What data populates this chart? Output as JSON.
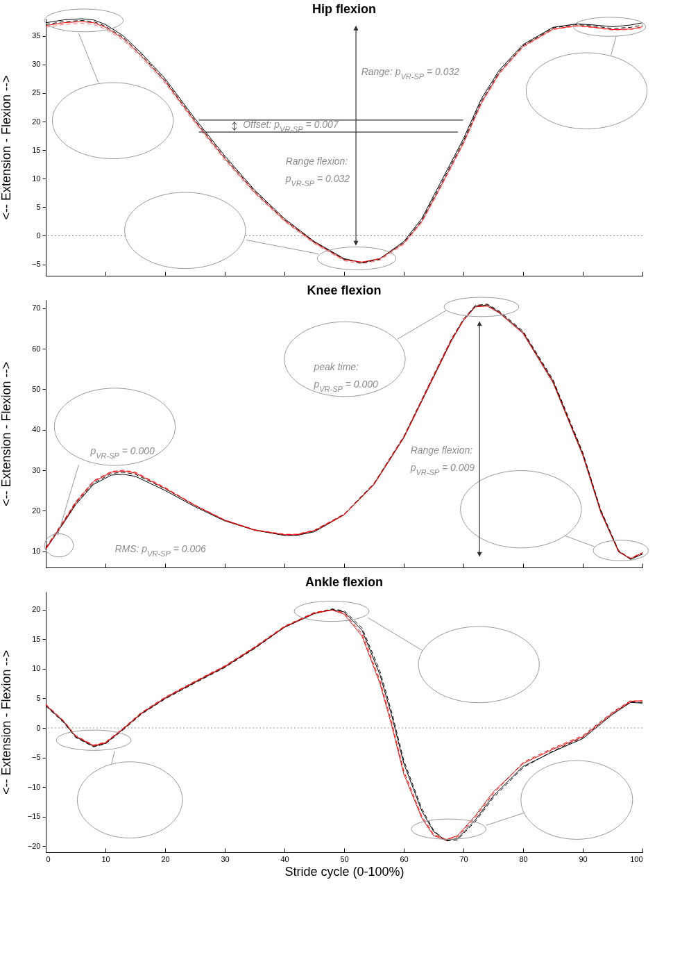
{
  "chart_data": [
    {
      "type": "line",
      "title": "Hip flexion",
      "ylabel": "<-- Extension - Flexion -->",
      "xlim": [
        0,
        100
      ],
      "xticks": [
        0,
        10,
        20,
        30,
        40,
        50,
        60,
        70,
        80,
        90,
        100
      ],
      "ylim": [
        -7,
        38
      ],
      "yticks": [
        -5,
        0,
        5,
        10,
        15,
        20,
        25,
        30,
        35
      ],
      "tick_labels": "y",
      "x": [
        0,
        3,
        6,
        8,
        10,
        13,
        16,
        20,
        25,
        30,
        35,
        40,
        45,
        50,
        53,
        56,
        60,
        63,
        66,
        70,
        73,
        76,
        80,
        85,
        89,
        92,
        95,
        98,
        100
      ],
      "series": [
        {
          "color": "#000000",
          "line_style": "solid",
          "values": [
            37.3,
            37.8,
            38,
            37.8,
            37,
            35,
            32,
            27.5,
            20.5,
            14,
            8,
            3,
            -1,
            -4,
            -4.7,
            -4,
            -1,
            3,
            9,
            17,
            24,
            29,
            33.5,
            36.5,
            37.1,
            36.9,
            36.6,
            36.9,
            37.3
          ]
        },
        {
          "color": "#000000",
          "line_style": "dashed",
          "values": [
            37,
            37.5,
            37.7,
            37.5,
            36.7,
            34.7,
            31.7,
            27.2,
            20.2,
            13.7,
            7.8,
            2.8,
            -1.1,
            -4.1,
            -4.8,
            -4.1,
            -1.2,
            2.7,
            8.6,
            16.6,
            23.6,
            28.7,
            33.3,
            36.4,
            37,
            36.7,
            36.3,
            36.5,
            36.9
          ]
        },
        {
          "color": "#ff0000",
          "line_style": "solid",
          "values": [
            36.8,
            37.3,
            37.5,
            37.3,
            36.5,
            34.5,
            31.5,
            27,
            20,
            13.5,
            7.6,
            2.7,
            -1.2,
            -4.2,
            -4.6,
            -4,
            -1.3,
            2.5,
            8.3,
            16.3,
            23.3,
            28.5,
            33.2,
            36.2,
            36.8,
            36.5,
            36.1,
            36.2,
            36.6
          ]
        },
        {
          "color": "#ff7070",
          "line_style": "dashed",
          "values": [
            36.5,
            37,
            37.2,
            37,
            36.2,
            34.2,
            31.2,
            26.7,
            19.7,
            13.2,
            7.4,
            2.5,
            -1.4,
            -4.4,
            -4.9,
            -4.3,
            -1.5,
            2.3,
            8.1,
            16.1,
            23.1,
            28.3,
            33,
            36.1,
            36.7,
            36.4,
            36,
            36.1,
            36.4
          ]
        }
      ],
      "ref_lines": [
        {
          "axis": "y",
          "value": 0,
          "color": "#999999",
          "line_style": "dotted"
        }
      ],
      "annotations": [
        "Range: p$_{VR-SP}$ = 0.032",
        "Offset: p$_{VR-SP}$ = 0.007",
        "Range flexion:\np$_{VR-SP}$ = 0.032"
      ]
    },
    {
      "type": "line",
      "title": "Knee flexion",
      "ylabel": "<-- Extension - Flexion -->",
      "xlim": [
        0,
        100
      ],
      "xticks": [
        0,
        10,
        20,
        30,
        40,
        50,
        60,
        70,
        80,
        90,
        100
      ],
      "ylim": [
        6,
        72
      ],
      "yticks": [
        10,
        20,
        30,
        40,
        50,
        60,
        70
      ],
      "tick_labels": "y",
      "x": [
        0,
        3,
        5,
        8,
        11,
        13,
        15,
        20,
        25,
        30,
        35,
        40,
        42,
        45,
        50,
        55,
        60,
        65,
        68,
        70,
        72,
        74,
        76,
        80,
        85,
        90,
        93,
        96,
        98,
        100
      ],
      "series": [
        {
          "color": "#000000",
          "line_style": "solid",
          "values": [
            10.5,
            17,
            21.5,
            26.5,
            28.8,
            29,
            28.5,
            25,
            21,
            17.5,
            15.2,
            13.9,
            13.9,
            14.8,
            19,
            26.5,
            38,
            53,
            62,
            67,
            70.5,
            70.8,
            69,
            64,
            52,
            34,
            20,
            10,
            8,
            9.3
          ]
        },
        {
          "color": "#000000",
          "line_style": "dashed",
          "values": [
            10.7,
            17.2,
            21.8,
            26.8,
            29.2,
            29.5,
            29,
            25.4,
            21.3,
            17.7,
            15.3,
            14,
            14,
            15,
            19.1,
            26.7,
            38.3,
            53.4,
            62.4,
            67.3,
            70.7,
            71,
            69.3,
            64.3,
            52.4,
            34.4,
            20.3,
            10.2,
            8.1,
            9.4
          ]
        },
        {
          "color": "#ff0000",
          "line_style": "solid",
          "values": [
            10.6,
            17.3,
            22,
            27.2,
            29.5,
            29.8,
            29.3,
            25.5,
            21.3,
            17.6,
            15.2,
            14.1,
            14.1,
            15.1,
            19,
            26.5,
            38.1,
            53.2,
            62.2,
            67,
            70.3,
            70.5,
            68.8,
            63.7,
            51.6,
            33.6,
            19.6,
            9.8,
            8.2,
            9.6
          ]
        },
        {
          "color": "#ff0000",
          "line_style": "dashed",
          "values": [
            10.9,
            17.6,
            22.2,
            27.4,
            29.7,
            30,
            29.5,
            25.7,
            21.4,
            17.7,
            15.3,
            14.2,
            14.2,
            15.2,
            19.2,
            26.8,
            38.4,
            53.5,
            62.5,
            67.3,
            70.6,
            70.8,
            69,
            64,
            51.9,
            33.9,
            19.8,
            9.9,
            8.3,
            9.7
          ]
        }
      ],
      "annotations": [
        "peak time:\np$_{VR-SP}$ = 0.000",
        "p$_{VR-SP}$ = 0.000",
        "Range flexion:\np$_{VR-SP}$ = 0.009",
        "RMS: p$_{VR-SP}$ = 0.006"
      ]
    },
    {
      "type": "line",
      "title": "Ankle flexion",
      "xlabel": "Stride cycle (0-100%)",
      "ylabel": "<-- Extension - Flexion -->",
      "xlim": [
        0,
        100
      ],
      "xticks": [
        0,
        10,
        20,
        30,
        40,
        50,
        60,
        70,
        80,
        90,
        100
      ],
      "ylim": [
        -21,
        23
      ],
      "yticks": [
        -20,
        -15,
        -10,
        -5,
        0,
        5,
        10,
        15,
        20
      ],
      "x": [
        0,
        3,
        5,
        8,
        10,
        13,
        16,
        20,
        25,
        30,
        35,
        40,
        45,
        48,
        50,
        53,
        56,
        58,
        60,
        63,
        65,
        67,
        69,
        72,
        75,
        80,
        85,
        90,
        95,
        98,
        100
      ],
      "series": [
        {
          "color": "#000000",
          "line_style": "solid",
          "values": [
            3.8,
            1,
            -1.5,
            -3.1,
            -2.6,
            -0.2,
            2.4,
            5,
            7.7,
            10.3,
            13.5,
            17,
            19.3,
            20,
            19.6,
            16.5,
            9,
            2,
            -6,
            -14,
            -17.5,
            -19,
            -18.7,
            -15.5,
            -11.5,
            -6.5,
            -4,
            -1.8,
            2.3,
            4.3,
            4.2
          ]
        },
        {
          "color": "#000000",
          "line_style": "dashed",
          "values": [
            3.7,
            0.9,
            -1.6,
            -3.2,
            -2.7,
            -0.3,
            2.3,
            4.9,
            7.6,
            10.2,
            13.4,
            17,
            19.4,
            20.1,
            19.8,
            16.9,
            9.6,
            2.6,
            -5.5,
            -13.6,
            -17.3,
            -19.1,
            -18.9,
            -15.8,
            -11.8,
            -6.7,
            -3.9,
            -1.6,
            2.5,
            4.4,
            4.3
          ]
        },
        {
          "color": "#ff0000",
          "line_style": "solid",
          "values": [
            3.9,
            1.1,
            -1.4,
            -3,
            -2.5,
            -0.1,
            2.5,
            5.1,
            7.8,
            10.4,
            13.6,
            17.1,
            19.4,
            19.9,
            19.2,
            15.5,
            7.5,
            0.3,
            -7.8,
            -15.2,
            -18.2,
            -18.9,
            -18.2,
            -14.8,
            -10.8,
            -6,
            -3.6,
            -1.5,
            2.5,
            4.5,
            4.6
          ]
        },
        {
          "color": "#ff0000",
          "line_style": "dashed",
          "values": [
            4,
            1.2,
            -1.3,
            -2.9,
            -2.4,
            0,
            2.6,
            5.2,
            7.9,
            10.5,
            13.7,
            17.2,
            19.5,
            20,
            19.4,
            15.9,
            8,
            0.8,
            -7.3,
            -14.9,
            -18,
            -18.8,
            -18.4,
            -15.1,
            -11.1,
            -5.8,
            -3.4,
            -1.3,
            2.7,
            4.6,
            4.5
          ]
        }
      ],
      "ref_lines": [
        {
          "axis": "y",
          "value": 0,
          "color": "#999999",
          "line_style": "dotted"
        }
      ]
    }
  ]
}
